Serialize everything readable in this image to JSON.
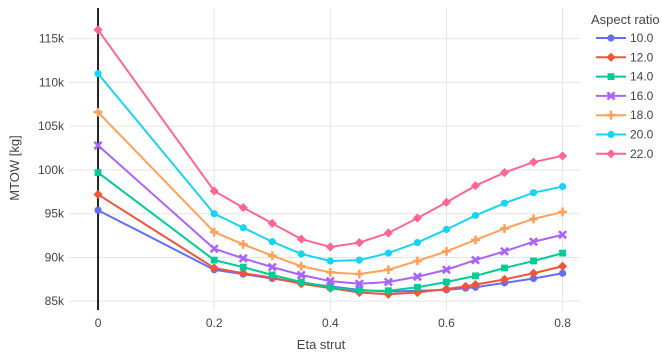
{
  "chart_data": {
    "type": "line",
    "xlabel": "Eta strut",
    "ylabel": "MTOW [kg]",
    "xlim": [
      -0.05,
      0.83
    ],
    "ylim": [
      84000,
      118500
    ],
    "x_ticks": [
      0,
      0.2,
      0.4,
      0.6,
      0.8
    ],
    "x_tick_labels": [
      "0",
      "0.2",
      "0.4",
      "0.6",
      "0.8"
    ],
    "y_ticks": [
      85000,
      90000,
      95000,
      100000,
      105000,
      110000,
      115000
    ],
    "y_tick_labels": [
      "85k",
      "90k",
      "95k",
      "100k",
      "105k",
      "110k",
      "115k"
    ],
    "grid": true,
    "legend_title": "Aspect ratio",
    "legend_position": "top-right",
    "x": [
      0,
      0.2,
      0.25,
      0.3,
      0.35,
      0.4,
      0.45,
      0.5,
      0.55,
      0.6,
      0.633,
      0.65,
      0.7,
      0.75,
      0.8
    ],
    "series": [
      {
        "name": "10.0",
        "color": "#636efa",
        "marker": "circle",
        "values": [
          95400,
          88600,
          88100,
          87600,
          87100,
          86700,
          86300,
          86100,
          86200,
          86300,
          86500,
          86600,
          87100,
          87600,
          88200
        ]
      },
      {
        "name": "12.0",
        "color": "#ef553b",
        "marker": "diamond",
        "values": [
          97200,
          88800,
          88200,
          87700,
          87000,
          86500,
          86000,
          85800,
          86000,
          86400,
          86700,
          86900,
          87500,
          88200,
          89000
        ]
      },
      {
        "name": "14.0",
        "color": "#00cc96",
        "marker": "square",
        "values": [
          99700,
          89700,
          88900,
          88000,
          87200,
          86600,
          86200,
          86200,
          86600,
          87200,
          null,
          87900,
          88800,
          89600,
          90500
        ]
      },
      {
        "name": "16.0",
        "color": "#ab63fa",
        "marker": "x",
        "values": [
          102800,
          91000,
          89900,
          88900,
          88000,
          87300,
          87000,
          87200,
          87800,
          88600,
          null,
          89700,
          90700,
          91800,
          92600
        ]
      },
      {
        "name": "18.0",
        "color": "#ffa15a",
        "marker": "cross",
        "values": [
          106600,
          92900,
          91500,
          90200,
          89000,
          88300,
          88100,
          88600,
          89600,
          90700,
          null,
          92000,
          93300,
          94400,
          95200
        ]
      },
      {
        "name": "20.0",
        "color": "#19d3f3",
        "marker": "circle",
        "values": [
          111000,
          95000,
          93400,
          91800,
          90400,
          89600,
          89700,
          90500,
          91700,
          93200,
          null,
          94800,
          96200,
          97400,
          98100
        ]
      },
      {
        "name": "22.0",
        "color": "#ff6692",
        "marker": "diamond",
        "values": [
          116000,
          97600,
          95700,
          93900,
          92100,
          91200,
          91700,
          92800,
          94500,
          96300,
          null,
          98200,
          99700,
          100900,
          101600
        ]
      }
    ]
  }
}
